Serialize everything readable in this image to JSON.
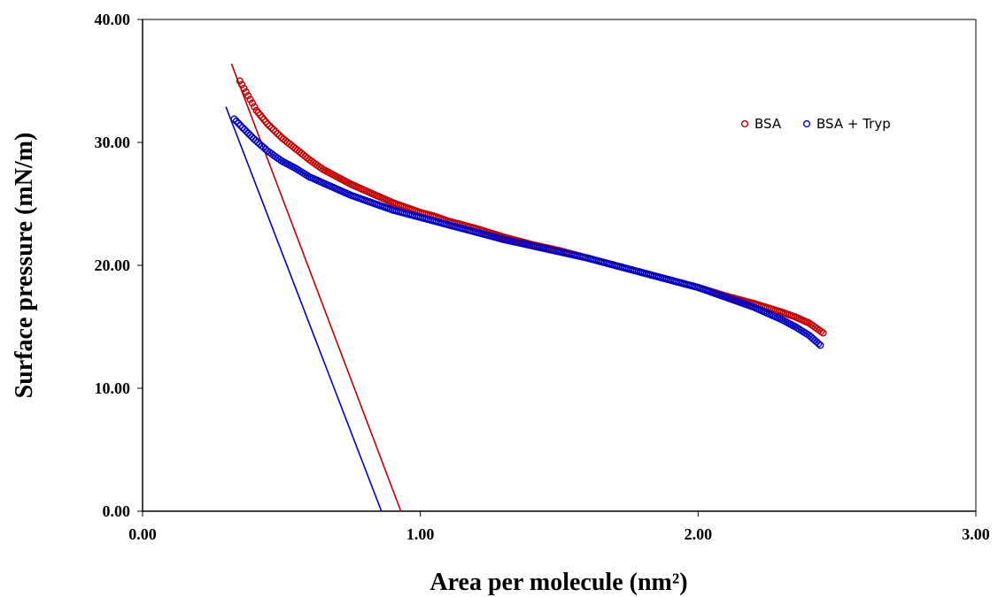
{
  "chart_data": {
    "type": "scatter",
    "xlabel": "Area per molecule (nm²)",
    "ylabel": "Surface pressure (mN/m)",
    "xlim": [
      0,
      3
    ],
    "ylim": [
      0,
      40
    ],
    "xticks": [
      "0.00",
      "1.00",
      "2.00",
      "3.00"
    ],
    "yticks": [
      "0.00",
      "10.00",
      "20.00",
      "30.00",
      "40.00"
    ],
    "grid": false,
    "legend_position": "top-right",
    "series": [
      {
        "name": "BSA",
        "color": "#c00000",
        "marker": "open-circle",
        "points": [
          [
            0.35,
            35.0
          ],
          [
            0.38,
            33.8
          ],
          [
            0.41,
            32.6
          ],
          [
            0.45,
            31.5
          ],
          [
            0.5,
            30.4
          ],
          [
            0.55,
            29.5
          ],
          [
            0.6,
            28.6
          ],
          [
            0.65,
            27.8
          ],
          [
            0.7,
            27.2
          ],
          [
            0.75,
            26.6
          ],
          [
            0.8,
            26.1
          ],
          [
            0.85,
            25.6
          ],
          [
            0.9,
            25.1
          ],
          [
            0.95,
            24.7
          ],
          [
            1.0,
            24.3
          ],
          [
            1.05,
            24.0
          ],
          [
            1.1,
            23.6
          ],
          [
            1.2,
            23.0
          ],
          [
            1.3,
            22.3
          ],
          [
            1.4,
            21.7
          ],
          [
            1.5,
            21.2
          ],
          [
            1.6,
            20.6
          ],
          [
            1.7,
            20.0
          ],
          [
            1.8,
            19.4
          ],
          [
            1.9,
            18.8
          ],
          [
            2.0,
            18.2
          ],
          [
            2.1,
            17.5
          ],
          [
            2.2,
            16.9
          ],
          [
            2.3,
            16.2
          ],
          [
            2.35,
            15.8
          ],
          [
            2.4,
            15.3
          ],
          [
            2.45,
            14.5
          ]
        ],
        "tangent": {
          "x1": 0.32,
          "y1": 36.4,
          "x2": 0.93,
          "y2": 0.0
        }
      },
      {
        "name": "BSA + Tryp",
        "color": "#0000c0",
        "marker": "open-circle",
        "points": [
          [
            0.33,
            31.9
          ],
          [
            0.36,
            31.2
          ],
          [
            0.4,
            30.3
          ],
          [
            0.45,
            29.3
          ],
          [
            0.5,
            28.5
          ],
          [
            0.55,
            27.9
          ],
          [
            0.6,
            27.2
          ],
          [
            0.65,
            26.7
          ],
          [
            0.7,
            26.2
          ],
          [
            0.75,
            25.7
          ],
          [
            0.8,
            25.3
          ],
          [
            0.85,
            24.9
          ],
          [
            0.9,
            24.5
          ],
          [
            0.95,
            24.2
          ],
          [
            1.0,
            23.9
          ],
          [
            1.05,
            23.6
          ],
          [
            1.1,
            23.3
          ],
          [
            1.2,
            22.7
          ],
          [
            1.3,
            22.1
          ],
          [
            1.4,
            21.6
          ],
          [
            1.5,
            21.1
          ],
          [
            1.6,
            20.6
          ],
          [
            1.7,
            20.0
          ],
          [
            1.8,
            19.4
          ],
          [
            1.9,
            18.8
          ],
          [
            2.0,
            18.2
          ],
          [
            2.1,
            17.4
          ],
          [
            2.2,
            16.6
          ],
          [
            2.3,
            15.6
          ],
          [
            2.35,
            15.0
          ],
          [
            2.4,
            14.3
          ],
          [
            2.44,
            13.5
          ]
        ],
        "tangent": {
          "x1": 0.3,
          "y1": 32.9,
          "x2": 0.86,
          "y2": 0.0
        }
      }
    ]
  }
}
